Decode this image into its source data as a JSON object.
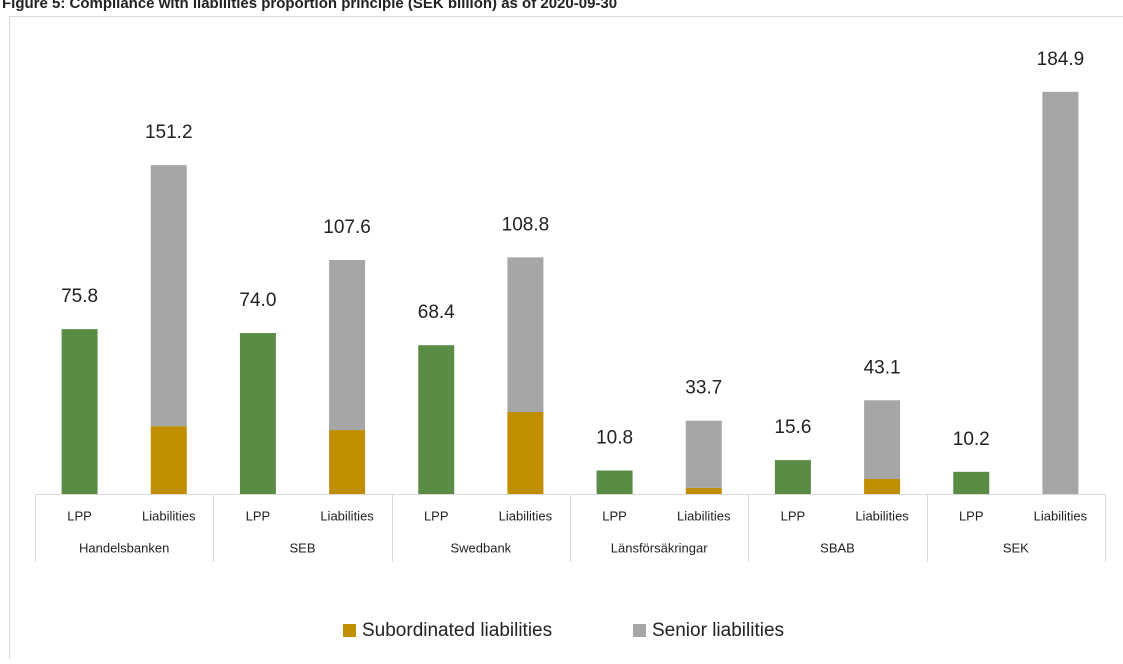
{
  "chart_data": {
    "type": "grouped-stacked-bar",
    "title": "Figure 5: Compliance with liabilities proportion principle (SEK billion) as of 2020-09-30",
    "groups": [
      "Handelsbanken",
      "SEB",
      "Swedbank",
      "Länsförsäkringar",
      "SBAB",
      "SEK"
    ],
    "bar_labels": [
      "LPP",
      "Liabilities"
    ],
    "lpp": {
      "color": "#5b8c45",
      "values": [
        75.8,
        74.0,
        68.4,
        10.8,
        15.6,
        10.2
      ],
      "value_labels": [
        "75.8",
        "74.0",
        "68.4",
        "10.8",
        "15.6",
        "10.2"
      ]
    },
    "series": [
      {
        "name": "Subordinated liabilities",
        "color": "#bf8f00",
        "values": [
          31.2,
          29.4,
          37.7,
          2.8,
          6.9,
          0
        ]
      },
      {
        "name": "Senior liabilities",
        "color": "#a6a6a6",
        "values": [
          120.0,
          78.2,
          71.1,
          30.9,
          36.2,
          184.9
        ]
      }
    ],
    "totals": [
      151.2,
      107.6,
      108.8,
      33.7,
      43.1,
      184.9
    ],
    "ylim": [
      0,
      200
    ]
  }
}
